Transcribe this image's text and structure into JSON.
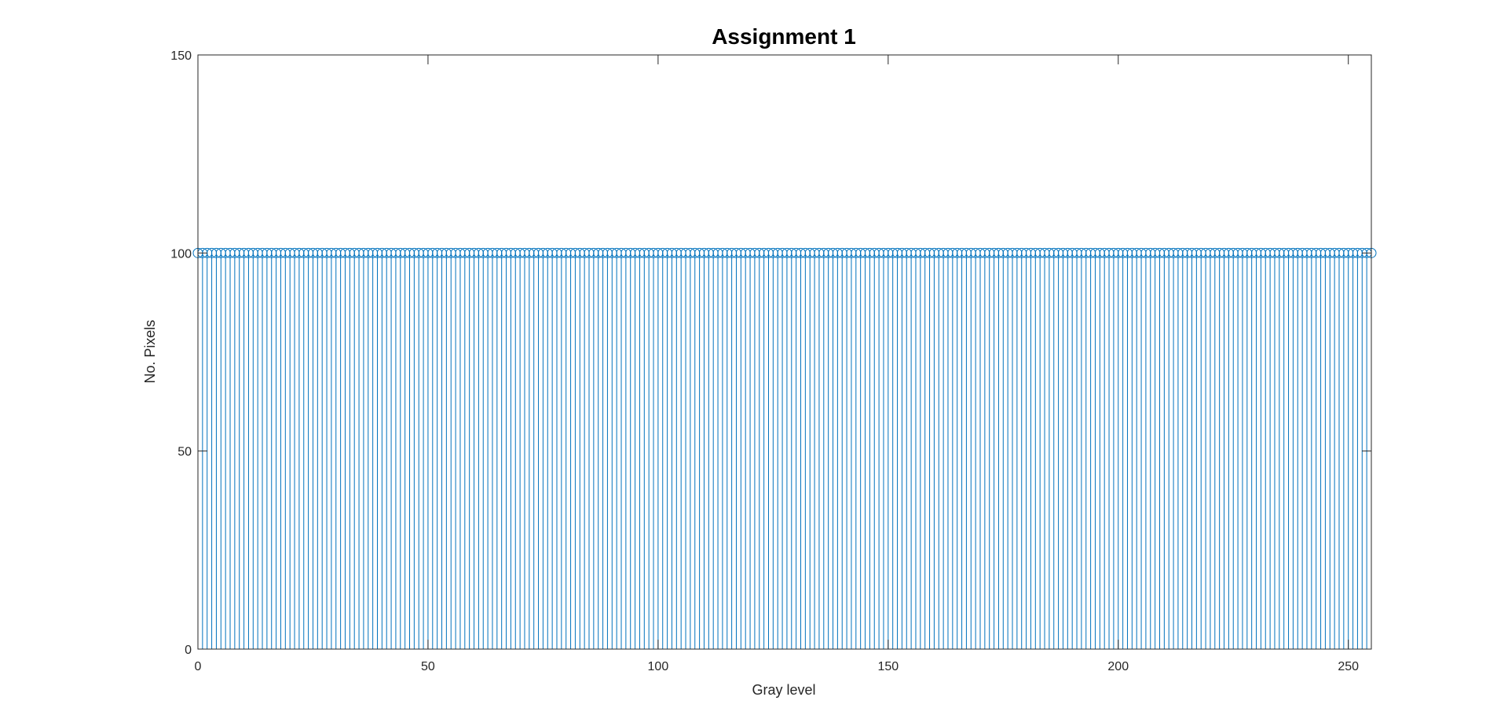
{
  "chart_data": {
    "type": "stem",
    "title": "Assignment 1",
    "xlabel": "Gray level",
    "ylabel": "No. Pixels",
    "xlim": [
      0,
      255
    ],
    "ylim": [
      0,
      150
    ],
    "xticks": [
      0,
      50,
      100,
      150,
      200,
      250
    ],
    "yticks": [
      0,
      50,
      100,
      150
    ],
    "grid": false,
    "series": [
      {
        "x_start": 0,
        "x_end": 255,
        "x_step": 1,
        "value": 100,
        "marker": "circle",
        "color": "#0072BD"
      }
    ]
  }
}
